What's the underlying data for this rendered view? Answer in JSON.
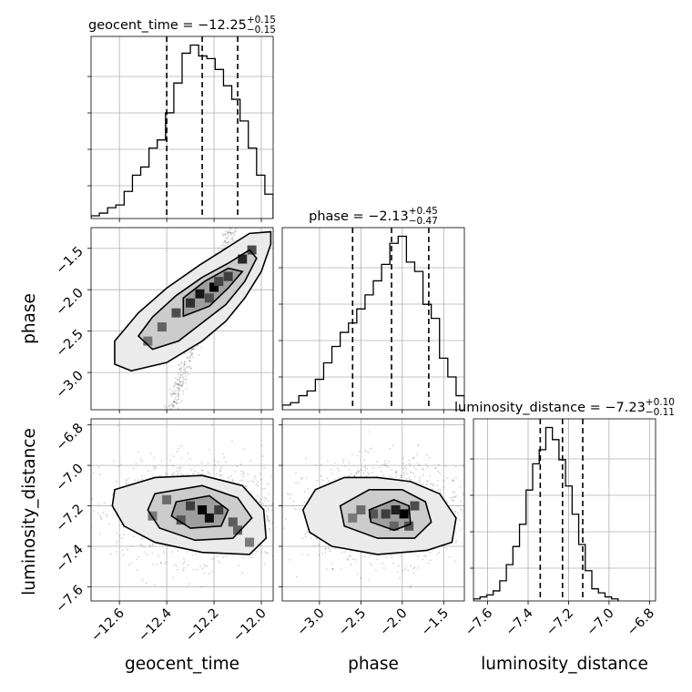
{
  "chart_data": {
    "type": "corner",
    "parameters": [
      {
        "key": "geocent_time",
        "label": "geocent_time",
        "title_text": "geocent_time = −12.25",
        "title_sup": "+0.15",
        "title_sub": "−0.15",
        "median": -12.25,
        "q16": -12.4,
        "q84": -12.1,
        "range": [
          -12.72,
          -11.95
        ],
        "ticks": [
          {
            "v": -12.6,
            "label": "−12.6"
          },
          {
            "v": -12.4,
            "label": "−12.4"
          },
          {
            "v": -12.2,
            "label": "−12.2"
          },
          {
            "v": -12.0,
            "label": "−12.0"
          }
        ],
        "hist_edges": [
          -12.72,
          -12.685,
          -12.65,
          -12.615,
          -12.58,
          -12.545,
          -12.51,
          -12.475,
          -12.44,
          -12.405,
          -12.37,
          -12.335,
          -12.3,
          -12.265,
          -12.23,
          -12.195,
          -12.16,
          -12.125,
          -12.09,
          -12.055,
          -12.02,
          -11.985,
          -11.95
        ],
        "hist_counts": [
          1,
          2,
          4,
          5,
          10,
          16,
          19,
          26,
          29,
          39,
          50,
          61,
          64,
          60,
          59,
          55,
          49,
          44,
          36,
          26,
          16,
          9
        ]
      },
      {
        "key": "phase",
        "label": "phase",
        "title_text": "phase = −2.13",
        "title_sup": "+0.45",
        "title_sub": "−0.47",
        "median": -2.13,
        "q16": -2.6,
        "q84": -1.68,
        "range": [
          -3.45,
          -1.25
        ],
        "ticks": [
          {
            "v": -3.0,
            "label": "−3.0"
          },
          {
            "v": -2.5,
            "label": "−2.5"
          },
          {
            "v": -2.0,
            "label": "−2.0"
          },
          {
            "v": -1.5,
            "label": "−1.5"
          }
        ],
        "hist_edges": [
          -3.45,
          -3.35,
          -3.25,
          -3.15,
          -3.05,
          -2.95,
          -2.85,
          -2.75,
          -2.65,
          -2.55,
          -2.45,
          -2.35,
          -2.25,
          -2.15,
          -2.05,
          -1.95,
          -1.85,
          -1.75,
          -1.65,
          -1.55,
          -1.45,
          -1.35,
          -1.25
        ],
        "hist_counts": [
          2,
          3,
          6,
          8,
          13,
          20,
          27,
          33,
          37,
          43,
          49,
          55,
          62,
          71,
          74,
          63,
          59,
          45,
          39,
          22,
          14,
          6
        ]
      },
      {
        "key": "luminosity_distance",
        "label": "luminosity_distance",
        "title_text": "luminosity_distance = −7.23",
        "title_sup": "+0.10",
        "title_sub": "−0.11",
        "median": -7.23,
        "q16": -7.34,
        "q84": -7.13,
        "range": [
          -7.67,
          -6.77
        ],
        "ticks": [
          {
            "v": -7.6,
            "label": "−7.6"
          },
          {
            "v": -7.4,
            "label": "−7.4"
          },
          {
            "v": -7.2,
            "label": "−7.2"
          },
          {
            "v": -7.0,
            "label": "−7.0"
          },
          {
            "v": -6.8,
            "label": "−6.8"
          }
        ],
        "hist_edges": [
          -7.67,
          -7.6375,
          -7.605,
          -7.5725,
          -7.54,
          -7.5075,
          -7.475,
          -7.4425,
          -7.41,
          -7.3775,
          -7.345,
          -7.3125,
          -7.28,
          -7.2475,
          -7.215,
          -7.1825,
          -7.15,
          -7.1175,
          -7.085,
          -7.0525,
          -7.02,
          -6.9875,
          -6.955
        ],
        "hist_counts": [
          1,
          2,
          3,
          5,
          10,
          18,
          27,
          38,
          55,
          68,
          75,
          86,
          80,
          70,
          57,
          43,
          28,
          15,
          6,
          4,
          2,
          1
        ]
      }
    ],
    "pairs": [
      {
        "x": "geocent_time",
        "y": "phase",
        "scatter_cloud": {
          "slope": 8.5,
          "intercept": 101.8,
          "x_range": [
            -12.7,
            -11.96
          ],
          "spread": 0.12
        },
        "contours": [
          [
            [
              -12.55,
              -2.98
            ],
            [
              -12.4,
              -2.88
            ],
            [
              -12.25,
              -2.62
            ],
            [
              -12.15,
              -2.38
            ],
            [
              -12.07,
              -2.1
            ],
            [
              -12.0,
              -1.78
            ],
            [
              -11.96,
              -1.45
            ],
            [
              -11.96,
              -1.3
            ],
            [
              -12.05,
              -1.32
            ],
            [
              -12.16,
              -1.52
            ],
            [
              -12.26,
              -1.7
            ],
            [
              -12.4,
              -1.98
            ],
            [
              -12.52,
              -2.28
            ],
            [
              -12.62,
              -2.62
            ],
            [
              -12.62,
              -2.9
            ]
          ],
          [
            [
              -12.46,
              -2.72
            ],
            [
              -12.35,
              -2.62
            ],
            [
              -12.25,
              -2.4
            ],
            [
              -12.15,
              -2.18
            ],
            [
              -12.07,
              -1.9
            ],
            [
              -12.02,
              -1.62
            ],
            [
              -12.05,
              -1.52
            ],
            [
              -12.14,
              -1.68
            ],
            [
              -12.25,
              -1.85
            ],
            [
              -12.36,
              -2.07
            ],
            [
              -12.46,
              -2.33
            ],
            [
              -12.52,
              -2.56
            ]
          ],
          [
            [
              -12.33,
              -2.32
            ],
            [
              -12.22,
              -2.2
            ],
            [
              -12.14,
              -1.98
            ],
            [
              -12.08,
              -1.78
            ],
            [
              -12.14,
              -1.74
            ],
            [
              -12.24,
              -1.9
            ],
            [
              -12.33,
              -2.1
            ]
          ]
        ],
        "density_cells": [
          [
            -12.2,
            -1.97,
            1.0
          ],
          [
            -12.26,
            -2.05,
            0.85
          ],
          [
            -12.3,
            -2.16,
            0.7
          ],
          [
            -12.14,
            -1.84,
            0.6
          ],
          [
            -12.08,
            -1.63,
            0.75
          ],
          [
            -12.04,
            -1.52,
            0.5
          ],
          [
            -12.36,
            -2.28,
            0.5
          ],
          [
            -12.42,
            -2.45,
            0.35
          ],
          [
            -12.48,
            -2.62,
            0.25
          ],
          [
            -12.22,
            -2.1,
            0.5
          ],
          [
            -12.18,
            -1.9,
            0.55
          ]
        ]
      },
      {
        "x": "geocent_time",
        "y": "luminosity_distance",
        "scatter_cloud": {
          "center": [
            -12.27,
            -7.23
          ],
          "sigma": [
            0.17,
            0.12
          ]
        },
        "contours": [
          [
            [
              -12.62,
              -7.12
            ],
            [
              -12.45,
              -7.06
            ],
            [
              -12.25,
              -7.05
            ],
            [
              -12.08,
              -7.1
            ],
            [
              -11.99,
              -7.22
            ],
            [
              -11.98,
              -7.36
            ],
            [
              -12.05,
              -7.44
            ],
            [
              -12.25,
              -7.43
            ],
            [
              -12.45,
              -7.38
            ],
            [
              -12.58,
              -7.3
            ],
            [
              -12.63,
              -7.2
            ]
          ],
          [
            [
              -12.45,
              -7.14
            ],
            [
              -12.25,
              -7.1
            ],
            [
              -12.1,
              -7.16
            ],
            [
              -12.04,
              -7.26
            ],
            [
              -12.12,
              -7.36
            ],
            [
              -12.28,
              -7.37
            ],
            [
              -12.43,
              -7.31
            ],
            [
              -12.48,
              -7.22
            ]
          ],
          [
            [
              -12.36,
              -7.18
            ],
            [
              -12.22,
              -7.15
            ],
            [
              -12.14,
              -7.22
            ],
            [
              -12.17,
              -7.3
            ],
            [
              -12.3,
              -7.31
            ],
            [
              -12.38,
              -7.25
            ]
          ]
        ],
        "density_cells": [
          [
            -12.25,
            -7.22,
            1.0
          ],
          [
            -12.22,
            -7.26,
            0.9
          ],
          [
            -12.3,
            -7.2,
            0.6
          ],
          [
            -12.18,
            -7.22,
            0.6
          ],
          [
            -12.34,
            -7.27,
            0.45
          ],
          [
            -12.12,
            -7.28,
            0.4
          ],
          [
            -12.4,
            -7.17,
            0.3
          ],
          [
            -12.1,
            -7.32,
            0.35
          ],
          [
            -12.05,
            -7.38,
            0.2
          ],
          [
            -12.46,
            -7.25,
            0.2
          ]
        ]
      },
      {
        "x": "phase",
        "y": "luminosity_distance",
        "scatter_cloud": {
          "center": [
            -2.2,
            -7.23
          ],
          "sigma": [
            0.48,
            0.12
          ]
        },
        "contours": [
          [
            [
              -3.2,
              -7.22
            ],
            [
              -3.05,
              -7.12
            ],
            [
              -2.7,
              -7.06
            ],
            [
              -2.3,
              -7.06
            ],
            [
              -1.9,
              -7.08
            ],
            [
              -1.55,
              -7.14
            ],
            [
              -1.35,
              -7.26
            ],
            [
              -1.4,
              -7.38
            ],
            [
              -1.7,
              -7.42
            ],
            [
              -2.3,
              -7.44
            ],
            [
              -2.85,
              -7.4
            ],
            [
              -3.12,
              -7.33
            ]
          ],
          [
            [
              -2.75,
              -7.2
            ],
            [
              -2.4,
              -7.12
            ],
            [
              -2.0,
              -7.12
            ],
            [
              -1.72,
              -7.18
            ],
            [
              -1.65,
              -7.28
            ],
            [
              -1.85,
              -7.36
            ],
            [
              -2.3,
              -7.36
            ],
            [
              -2.7,
              -7.3
            ]
          ],
          [
            [
              -2.4,
              -7.22
            ],
            [
              -2.1,
              -7.17
            ],
            [
              -1.92,
              -7.2
            ],
            [
              -1.9,
              -7.29
            ],
            [
              -2.1,
              -7.32
            ],
            [
              -2.38,
              -7.28
            ]
          ]
        ],
        "density_cells": [
          [
            -1.98,
            -7.24,
            1.0
          ],
          [
            -2.08,
            -7.22,
            0.8
          ],
          [
            -2.2,
            -7.24,
            0.6
          ],
          [
            -2.35,
            -7.24,
            0.45
          ],
          [
            -1.85,
            -7.2,
            0.5
          ],
          [
            -1.92,
            -7.3,
            0.45
          ],
          [
            -2.5,
            -7.22,
            0.3
          ],
          [
            -2.6,
            -7.26,
            0.2
          ],
          [
            -2.1,
            -7.3,
            0.35
          ]
        ]
      }
    ]
  }
}
